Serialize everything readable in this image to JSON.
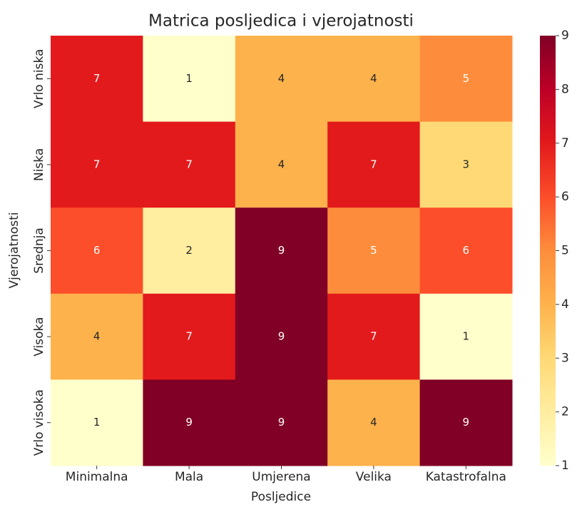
{
  "chart_data": {
    "type": "heatmap",
    "title": "Matrica posljedica i vjerojatnosti",
    "xlabel": "Posljedice",
    "ylabel": "Vjerojatnosti",
    "x_categories": [
      "Minimalna",
      "Mala",
      "Umjerena",
      "Velika",
      "Katastrofalna"
    ],
    "y_categories": [
      "Vrlo niska",
      "Niska",
      "Srednja",
      "Visoka",
      "Vrlo visoka"
    ],
    "values": [
      [
        7,
        1,
        4,
        4,
        5
      ],
      [
        7,
        7,
        4,
        7,
        3
      ],
      [
        6,
        2,
        9,
        5,
        6
      ],
      [
        4,
        7,
        9,
        7,
        1
      ],
      [
        1,
        9,
        9,
        4,
        9
      ]
    ],
    "colormap": [
      "#ffffcc",
      "#ffeda0",
      "#fed976",
      "#feb24c",
      "#fd8d3c",
      "#fc4e2a",
      "#e31a1c",
      "#bd0026",
      "#800026"
    ],
    "clim": [
      1,
      9
    ],
    "cticks": [
      1,
      2,
      3,
      4,
      5,
      6,
      7,
      8,
      9
    ]
  }
}
